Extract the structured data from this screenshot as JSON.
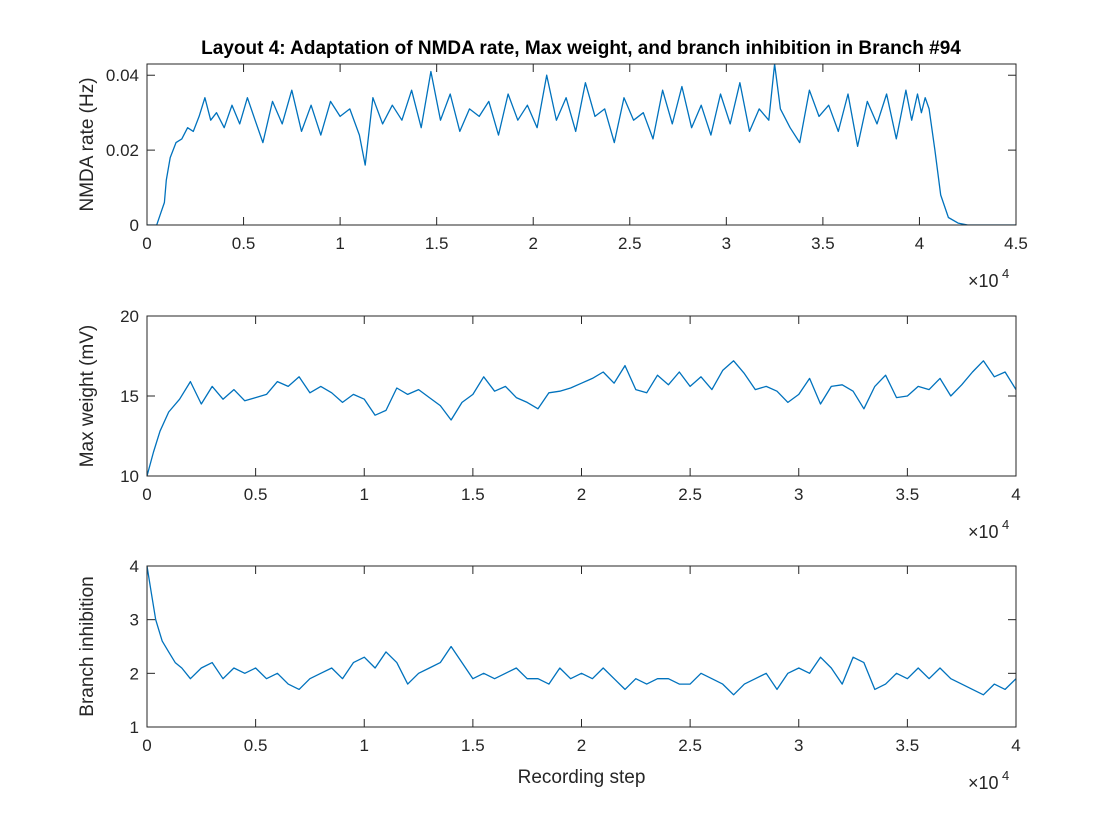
{
  "figure": {
    "title": "Layout 4: Adaptation of NMDA rate, Max weight, and branch inhibition in Branch #94"
  },
  "chart_data": [
    {
      "type": "line",
      "ylabel": "NMDA rate (Hz)",
      "xlabel": "",
      "xlim": [
        0,
        45000
      ],
      "ylim": [
        0,
        0.043
      ],
      "xticks": [
        0,
        5000,
        10000,
        15000,
        20000,
        25000,
        30000,
        35000,
        40000,
        45000
      ],
      "xtick_labels": [
        "0",
        "0.5",
        "1",
        "1.5",
        "2",
        "2.5",
        "3",
        "3.5",
        "4",
        "4.5"
      ],
      "yticks": [
        0,
        0.02,
        0.04
      ],
      "ytick_labels": [
        "0",
        "0.02",
        "0.04"
      ],
      "x_exponent": {
        "base": "10",
        "power": "4"
      },
      "grid": false,
      "color": "#0072BD",
      "series": [
        {
          "x": [
            0,
            300,
            500,
            700,
            900,
            1000,
            1200,
            1500,
            1800,
            2100,
            2400,
            2700,
            3000,
            3300,
            3600,
            4000,
            4400,
            4800,
            5200,
            5600,
            6000,
            6500,
            7000,
            7500,
            8000,
            8500,
            9000,
            9500,
            10000,
            10500,
            11000,
            11300,
            11700,
            12200,
            12700,
            13200,
            13700,
            14200,
            14700,
            15200,
            15700,
            16200,
            16700,
            17200,
            17700,
            18200,
            18700,
            19200,
            19700,
            20200,
            20700,
            21200,
            21700,
            22200,
            22700,
            23200,
            23700,
            24200,
            24700,
            25200,
            25700,
            26200,
            26700,
            27200,
            27700,
            28200,
            28700,
            29200,
            29700,
            30200,
            30700,
            31200,
            31700,
            32200,
            32500,
            32800,
            33300,
            33800,
            34300,
            34800,
            35300,
            35800,
            36300,
            36800,
            37300,
            37800,
            38300,
            38800,
            39300,
            39600,
            39900,
            40100,
            40300,
            40500,
            40800,
            41100,
            41500,
            42000,
            42500,
            43000,
            45000
          ],
          "values": [
            0,
            0,
            0,
            0.003,
            0.006,
            0.012,
            0.018,
            0.022,
            0.023,
            0.026,
            0.025,
            0.029,
            0.034,
            0.028,
            0.03,
            0.026,
            0.032,
            0.027,
            0.034,
            0.028,
            0.022,
            0.033,
            0.027,
            0.036,
            0.025,
            0.032,
            0.024,
            0.033,
            0.029,
            0.031,
            0.024,
            0.016,
            0.034,
            0.027,
            0.032,
            0.028,
            0.036,
            0.026,
            0.041,
            0.028,
            0.035,
            0.025,
            0.031,
            0.029,
            0.033,
            0.024,
            0.035,
            0.028,
            0.032,
            0.026,
            0.04,
            0.028,
            0.034,
            0.025,
            0.038,
            0.029,
            0.031,
            0.022,
            0.034,
            0.028,
            0.03,
            0.023,
            0.036,
            0.027,
            0.037,
            0.026,
            0.032,
            0.024,
            0.035,
            0.027,
            0.038,
            0.025,
            0.031,
            0.028,
            0.043,
            0.031,
            0.026,
            0.022,
            0.036,
            0.029,
            0.032,
            0.025,
            0.035,
            0.021,
            0.033,
            0.027,
            0.035,
            0.023,
            0.036,
            0.028,
            0.035,
            0.03,
            0.034,
            0.031,
            0.02,
            0.008,
            0.002,
            0.0005,
            0,
            0,
            0
          ]
        }
      ]
    },
    {
      "type": "line",
      "ylabel": "Max weight (mV)",
      "xlabel": "",
      "xlim": [
        0,
        40000
      ],
      "ylim": [
        10,
        20
      ],
      "xticks": [
        0,
        5000,
        10000,
        15000,
        20000,
        25000,
        30000,
        35000,
        40000
      ],
      "xtick_labels": [
        "0",
        "0.5",
        "1",
        "1.5",
        "2",
        "2.5",
        "3",
        "3.5",
        "4"
      ],
      "yticks": [
        10,
        15,
        20
      ],
      "ytick_labels": [
        "10",
        "15",
        "20"
      ],
      "x_exponent": {
        "base": "10",
        "power": "4"
      },
      "grid": false,
      "color": "#0072BD",
      "series": [
        {
          "x": [
            0,
            300,
            600,
            1000,
            1500,
            2000,
            2500,
            3000,
            3500,
            4000,
            4500,
            5000,
            5500,
            6000,
            6500,
            7000,
            7500,
            8000,
            8500,
            9000,
            9500,
            10000,
            10500,
            11000,
            11500,
            12000,
            12500,
            13000,
            13500,
            14000,
            14500,
            15000,
            15500,
            16000,
            16500,
            17000,
            17500,
            18000,
            18500,
            19000,
            19500,
            20000,
            20500,
            21000,
            21500,
            22000,
            22500,
            23000,
            23500,
            24000,
            24500,
            25000,
            25500,
            26000,
            26500,
            27000,
            27500,
            28000,
            28500,
            29000,
            29500,
            30000,
            30500,
            31000,
            31500,
            32000,
            32500,
            33000,
            33500,
            34000,
            34500,
            35000,
            35500,
            36000,
            36500,
            37000,
            37500,
            38000,
            38500,
            39000,
            39500,
            40000
          ],
          "values": [
            10,
            11.5,
            12.8,
            14,
            14.8,
            15.9,
            14.5,
            15.6,
            14.8,
            15.4,
            14.7,
            14.9,
            15.1,
            15.9,
            15.6,
            16.2,
            15.2,
            15.6,
            15.2,
            14.6,
            15.1,
            14.8,
            13.8,
            14.1,
            15.5,
            15.1,
            15.4,
            14.9,
            14.4,
            13.5,
            14.6,
            15.1,
            16.2,
            15.3,
            15.6,
            14.9,
            14.6,
            14.2,
            15.2,
            15.3,
            15.5,
            15.8,
            16.1,
            16.5,
            15.8,
            16.9,
            15.4,
            15.2,
            16.3,
            15.7,
            16.5,
            15.6,
            16.2,
            15.4,
            16.6,
            17.2,
            16.4,
            15.4,
            15.6,
            15.3,
            14.6,
            15.1,
            16.1,
            14.5,
            15.6,
            15.7,
            15.3,
            14.2,
            15.6,
            16.3,
            14.9,
            15,
            15.6,
            15.4,
            16.1,
            15,
            15.7,
            16.5,
            17.2,
            16.2,
            16.5,
            15.4
          ]
        }
      ]
    },
    {
      "type": "line",
      "ylabel": "Branch inhibition",
      "xlabel": "Recording step",
      "xlim": [
        0,
        40000
      ],
      "ylim": [
        1,
        4
      ],
      "xticks": [
        0,
        5000,
        10000,
        15000,
        20000,
        25000,
        30000,
        35000,
        40000
      ],
      "xtick_labels": [
        "0",
        "0.5",
        "1",
        "1.5",
        "2",
        "2.5",
        "3",
        "3.5",
        "4"
      ],
      "yticks": [
        1,
        2,
        3,
        4
      ],
      "ytick_labels": [
        "1",
        "2",
        "3",
        "4"
      ],
      "x_exponent": {
        "base": "10",
        "power": "4"
      },
      "grid": false,
      "color": "#0072BD",
      "series": [
        {
          "x": [
            0,
            200,
            400,
            700,
            1000,
            1300,
            1600,
            2000,
            2500,
            3000,
            3500,
            4000,
            4500,
            5000,
            5500,
            6000,
            6500,
            7000,
            7500,
            8000,
            8500,
            9000,
            9500,
            10000,
            10500,
            11000,
            11500,
            12000,
            12500,
            13000,
            13500,
            14000,
            14500,
            15000,
            15500,
            16000,
            16500,
            17000,
            17500,
            18000,
            18500,
            19000,
            19500,
            20000,
            20500,
            21000,
            21500,
            22000,
            22500,
            23000,
            23500,
            24000,
            24500,
            25000,
            25500,
            26000,
            26500,
            27000,
            27500,
            28000,
            28500,
            29000,
            29500,
            30000,
            30500,
            31000,
            31500,
            32000,
            32500,
            33000,
            33500,
            34000,
            34500,
            35000,
            35500,
            36000,
            36500,
            37000,
            37500,
            38000,
            38500,
            39000,
            39500,
            40000
          ],
          "values": [
            4,
            3.5,
            3,
            2.6,
            2.4,
            2.2,
            2.1,
            1.9,
            2.1,
            2.2,
            1.9,
            2.1,
            2,
            2.1,
            1.9,
            2,
            1.8,
            1.7,
            1.9,
            2,
            2.1,
            1.9,
            2.2,
            2.3,
            2.1,
            2.4,
            2.2,
            1.8,
            2,
            2.1,
            2.2,
            2.5,
            2.2,
            1.9,
            2,
            1.9,
            2,
            2.1,
            1.9,
            1.9,
            1.8,
            2.1,
            1.9,
            2,
            1.9,
            2.1,
            1.9,
            1.7,
            1.9,
            1.8,
            1.9,
            1.9,
            1.8,
            1.8,
            2,
            1.9,
            1.8,
            1.6,
            1.8,
            1.9,
            2,
            1.7,
            2,
            2.1,
            2,
            2.3,
            2.1,
            1.8,
            2.3,
            2.2,
            1.7,
            1.8,
            2,
            1.9,
            2.1,
            1.9,
            2.1,
            1.9,
            1.8,
            1.7,
            1.6,
            1.8,
            1.7,
            1.9
          ]
        }
      ]
    }
  ]
}
